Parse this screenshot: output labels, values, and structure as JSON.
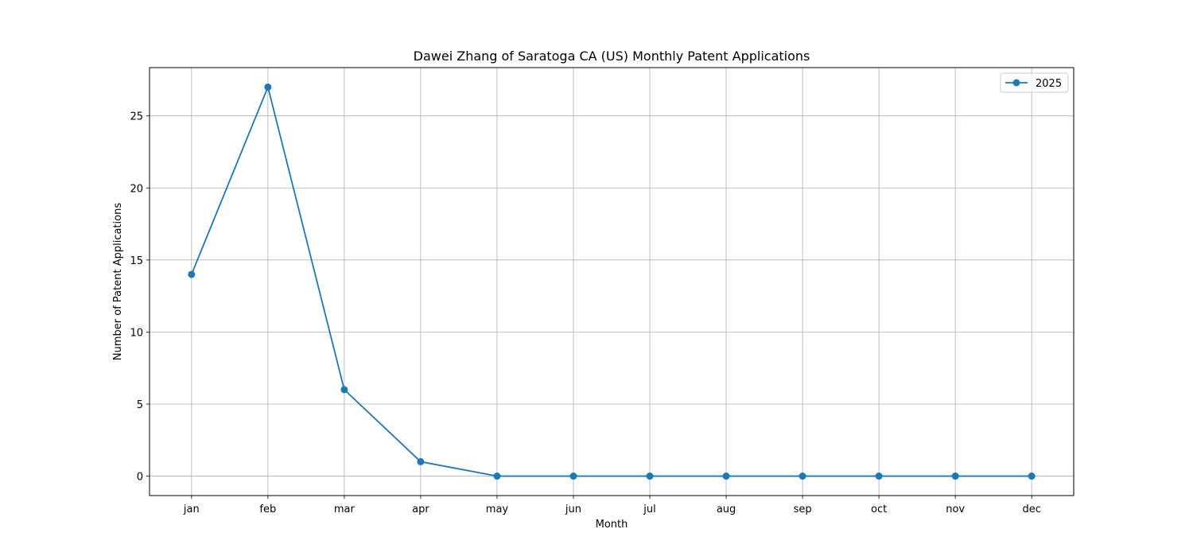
{
  "chart_data": {
    "type": "line",
    "title": "Dawei Zhang of Saratoga CA (US) Monthly Patent Applications",
    "xlabel": "Month",
    "ylabel": "Number of Patent Applications",
    "categories": [
      "jan",
      "feb",
      "mar",
      "apr",
      "may",
      "jun",
      "jul",
      "aug",
      "sep",
      "oct",
      "nov",
      "dec"
    ],
    "series": [
      {
        "name": "2025",
        "values": [
          14,
          27,
          6,
          1,
          0,
          0,
          0,
          0,
          0,
          0,
          0,
          0
        ],
        "color": "#1f77b4",
        "marker": "circle"
      }
    ],
    "ylim": [
      -1.35,
      28.35
    ],
    "yticks": [
      0,
      5,
      10,
      15,
      20,
      25
    ],
    "grid": true,
    "legend_position": "top-right"
  }
}
